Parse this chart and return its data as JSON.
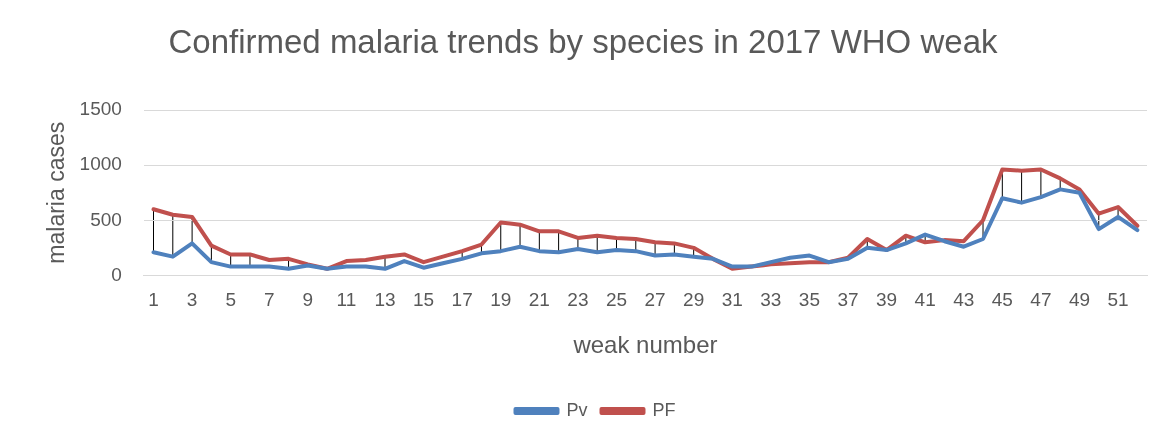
{
  "chart_data": {
    "type": "line",
    "title": "Confirmed malaria trends by species in 2017 WHO weak",
    "xlabel": "weak number",
    "ylabel": "malaria cases",
    "x": [
      1,
      2,
      3,
      4,
      5,
      6,
      7,
      8,
      9,
      10,
      11,
      12,
      13,
      14,
      15,
      16,
      17,
      18,
      19,
      20,
      21,
      22,
      23,
      24,
      25,
      26,
      27,
      28,
      29,
      30,
      31,
      32,
      33,
      34,
      35,
      36,
      37,
      38,
      39,
      40,
      41,
      42,
      43,
      44,
      45,
      46,
      47,
      48,
      49,
      50,
      51,
      52
    ],
    "xlim": [
      0.5,
      52.5
    ],
    "xticks": [
      1,
      3,
      5,
      7,
      9,
      11,
      13,
      15,
      17,
      19,
      21,
      23,
      25,
      27,
      29,
      31,
      33,
      35,
      37,
      39,
      41,
      43,
      45,
      47,
      49,
      51
    ],
    "series": [
      {
        "name": "Pv",
        "color": "#4f81bd",
        "values": [
          210,
          170,
          290,
          120,
          80,
          80,
          80,
          60,
          90,
          60,
          80,
          80,
          60,
          130,
          70,
          110,
          150,
          200,
          220,
          260,
          220,
          210,
          240,
          210,
          230,
          220,
          180,
          190,
          170,
          150,
          80,
          80,
          120,
          160,
          180,
          120,
          150,
          250,
          230,
          290,
          370,
          310,
          260,
          330,
          700,
          660,
          710,
          780,
          750,
          420,
          530,
          410
        ]
      },
      {
        "name": "PF",
        "color": "#c0504d",
        "values": [
          600,
          550,
          530,
          270,
          190,
          190,
          140,
          150,
          100,
          60,
          130,
          140,
          170,
          190,
          120,
          170,
          220,
          280,
          480,
          460,
          400,
          400,
          340,
          360,
          340,
          330,
          300,
          290,
          250,
          150,
          60,
          80,
          100,
          110,
          120,
          120,
          160,
          330,
          230,
          360,
          300,
          320,
          310,
          500,
          960,
          950,
          960,
          880,
          780,
          560,
          620,
          450
        ]
      }
    ],
    "ylim": [
      0,
      1500
    ],
    "yticks": [
      0,
      500,
      1000,
      1500
    ],
    "grid": "y",
    "legend": "bottom",
    "marker": "none"
  }
}
